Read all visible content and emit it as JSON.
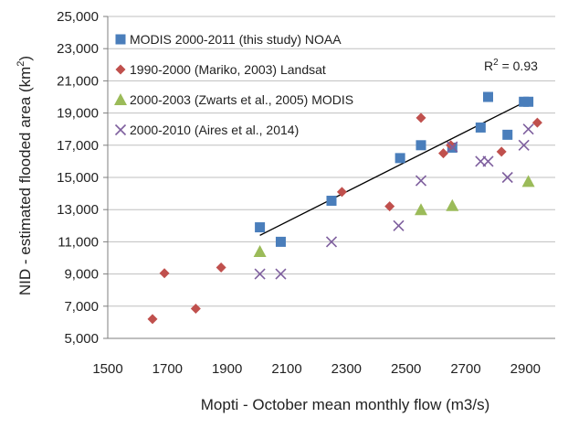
{
  "chart_data": {
    "type": "scatter",
    "xlabel": "Mopti - October mean monthly flow (m3/s)",
    "ylabel": "NID - estimated flooded area (km²)",
    "xlim": [
      1500,
      3000
    ],
    "ylim": [
      5000,
      25000
    ],
    "x_ticks": [
      "1500",
      "1700",
      "1900",
      "2100",
      "2300",
      "2500",
      "2700",
      "2900"
    ],
    "y_ticks": [
      "5,000",
      "7,000",
      "9,000",
      "11,000",
      "13,000",
      "15,000",
      "17,000",
      "19,000",
      "21,000",
      "23,000",
      "25,000"
    ],
    "grid": "horizontal",
    "legend_position": "top-left",
    "r2_label": "R² = 0.93",
    "trendline": {
      "series": "MODIS 2000-2011 (this study) NOAA",
      "x": [
        2010,
        2910
      ],
      "y": [
        11400,
        19800
      ]
    },
    "series": [
      {
        "name": "MODIS 2000-2011 (this study) NOAA",
        "marker": "square",
        "color": "#4a7ebb",
        "points": [
          [
            2010,
            11900
          ],
          [
            2080,
            11000
          ],
          [
            2250,
            13550
          ],
          [
            2480,
            16200
          ],
          [
            2550,
            17000
          ],
          [
            2655,
            16850
          ],
          [
            2750,
            18100
          ],
          [
            2775,
            20000
          ],
          [
            2840,
            17650
          ],
          [
            2895,
            19700
          ],
          [
            2910,
            19700
          ]
        ]
      },
      {
        "name": "1990-2000 (Mariko, 2003) Landsat",
        "marker": "diamond",
        "color": "#c0504d",
        "points": [
          [
            1650,
            6200
          ],
          [
            1690,
            9050
          ],
          [
            1795,
            6850
          ],
          [
            1880,
            9400
          ],
          [
            2285,
            14100
          ],
          [
            2445,
            13200
          ],
          [
            2550,
            18700
          ],
          [
            2625,
            16500
          ],
          [
            2650,
            17000
          ],
          [
            2820,
            16600
          ],
          [
            2940,
            18400
          ]
        ]
      },
      {
        "name": "2000-2003 (Zwarts et al., 2005) MODIS",
        "marker": "triangle",
        "color": "#9bbb59",
        "points": [
          [
            2010,
            10400
          ],
          [
            2550,
            13000
          ],
          [
            2655,
            13250
          ],
          [
            2910,
            14750
          ]
        ]
      },
      {
        "name": "2000-2010 (Aires et al., 2014)",
        "marker": "x",
        "color": "#7e5f9e",
        "points": [
          [
            2010,
            9000
          ],
          [
            2080,
            9000
          ],
          [
            2250,
            11000
          ],
          [
            2475,
            12000
          ],
          [
            2550,
            14800
          ],
          [
            2655,
            16900
          ],
          [
            2750,
            16000
          ],
          [
            2775,
            16000
          ],
          [
            2840,
            15000
          ],
          [
            2895,
            17000
          ],
          [
            2910,
            18000
          ]
        ]
      }
    ]
  }
}
